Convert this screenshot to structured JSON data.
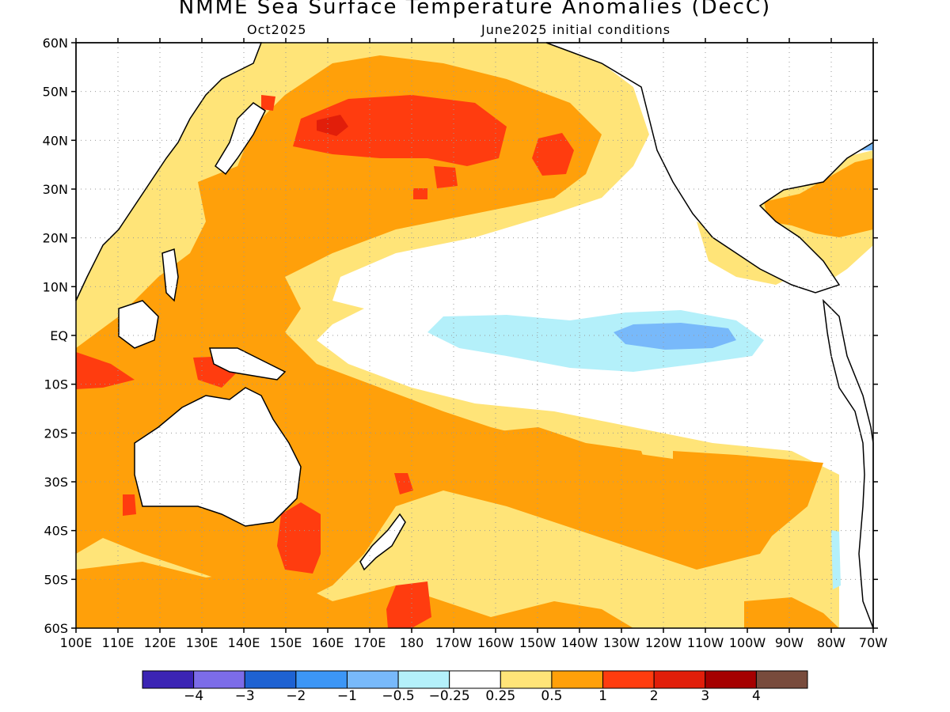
{
  "header": {
    "title": "NMME Sea Surface Temperature Anomalies (DecC)",
    "valid_month": "Oct2025",
    "init_conditions": "June2025 initial conditions"
  },
  "map": {
    "lon_labels": [
      "100E",
      "110E",
      "120E",
      "130E",
      "140E",
      "150E",
      "160E",
      "170E",
      "180",
      "170W",
      "160W",
      "150W",
      "140W",
      "130W",
      "120W",
      "110W",
      "100W",
      "90W",
      "80W",
      "70W"
    ],
    "lat_labels": [
      "60N",
      "50N",
      "40N",
      "30N",
      "20N",
      "10N",
      "EQ",
      "10S",
      "20S",
      "30S",
      "40S",
      "50S",
      "60S"
    ],
    "lon_range": [
      100,
      290
    ],
    "lat_range": [
      -60,
      60
    ],
    "grid": "dotted"
  },
  "colorbar": {
    "colors": [
      "#3b24b4",
      "#7c6ce8",
      "#1e62d2",
      "#3c96f6",
      "#78b9fa",
      "#b4f0fa",
      "#ffffff",
      "#ffe478",
      "#ffa00a",
      "#ff3c0f",
      "#e11e0a",
      "#a50000",
      "#784b3c"
    ],
    "labels": [
      "−4",
      "−3",
      "−2",
      "−1",
      "−0.5",
      "−0.25",
      "0.25",
      "0.5",
      "1",
      "2",
      "3",
      "4"
    ]
  },
  "palette": {
    "light_yellow": "#ffe478",
    "orange": "#ffa00a",
    "red_orange": "#ff3c0f",
    "red": "#e11e0a",
    "dark_red": "#a50000",
    "light_cyan": "#b4f0fa",
    "light_blue": "#78b9fa"
  }
}
